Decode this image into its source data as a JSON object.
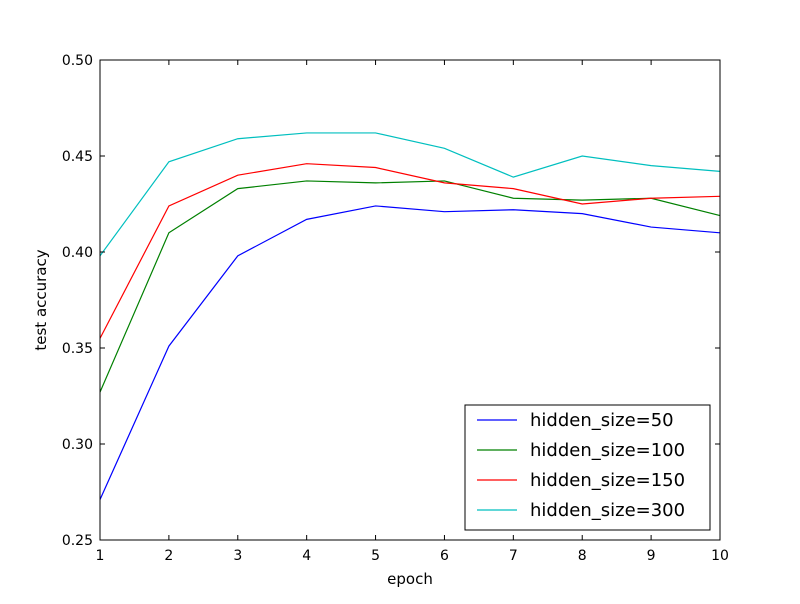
{
  "chart_data": {
    "type": "line",
    "xlabel": "epoch",
    "ylabel": "test accuracy",
    "xlim": [
      1,
      10
    ],
    "ylim": [
      0.25,
      0.5
    ],
    "grid": false,
    "legend_position": "bottom-right",
    "x": [
      1,
      2,
      3,
      4,
      5,
      6,
      7,
      8,
      9,
      10
    ],
    "x_ticks": [
      "1",
      "2",
      "3",
      "4",
      "5",
      "6",
      "7",
      "8",
      "9",
      "10"
    ],
    "y_tick_values": [
      0.25,
      0.3,
      0.35,
      0.4,
      0.45,
      0.5
    ],
    "y_ticks": [
      "0.25",
      "0.30",
      "0.35",
      "0.40",
      "0.45",
      "0.50"
    ],
    "series": [
      {
        "name": "hidden_size=50",
        "color": "#0000ff",
        "values": [
          0.271,
          0.351,
          0.398,
          0.417,
          0.424,
          0.421,
          0.422,
          0.42,
          0.413,
          0.41
        ]
      },
      {
        "name": "hidden_size=100",
        "color": "#008000",
        "values": [
          0.327,
          0.41,
          0.433,
          0.437,
          0.436,
          0.437,
          0.428,
          0.427,
          0.428,
          0.419
        ]
      },
      {
        "name": "hidden_size=150",
        "color": "#ff0000",
        "values": [
          0.355,
          0.424,
          0.44,
          0.446,
          0.444,
          0.436,
          0.433,
          0.425,
          0.428,
          0.429
        ]
      },
      {
        "name": "hidden_size=300",
        "color": "#00bfbf",
        "values": [
          0.398,
          0.447,
          0.459,
          0.462,
          0.462,
          0.454,
          0.439,
          0.45,
          0.445,
          0.442
        ]
      }
    ]
  }
}
